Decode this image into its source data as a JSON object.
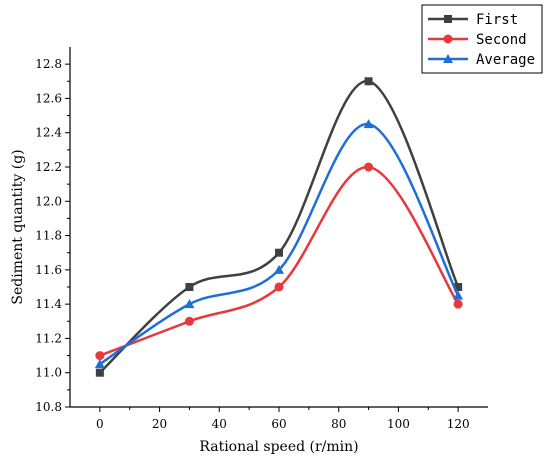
{
  "chart_data": {
    "type": "line",
    "xlabel": "Rational speed (r/min)",
    "ylabel": "Sediment quantity (g)",
    "xlim": [
      -10,
      130
    ],
    "ylim": [
      10.8,
      12.9
    ],
    "x_ticks": [
      0,
      20,
      40,
      60,
      80,
      100,
      120
    ],
    "y_ticks": [
      10.8,
      11.0,
      11.2,
      11.4,
      11.6,
      11.8,
      12.0,
      12.2,
      12.4,
      12.6,
      12.8
    ],
    "x_tick_labels": [
      "0",
      "20",
      "40",
      "60",
      "80",
      "100",
      "120"
    ],
    "y_tick_labels": [
      "10.8",
      "11.0",
      "11.2",
      "11.4",
      "11.6",
      "11.8",
      "12.0",
      "12.2",
      "12.4",
      "12.6",
      "12.8"
    ],
    "x": [
      0,
      30,
      60,
      90,
      120
    ],
    "series": [
      {
        "name": "First",
        "values": [
          11.0,
          11.5,
          11.7,
          12.7,
          11.5
        ],
        "color": "#404040",
        "marker": "square"
      },
      {
        "name": "Second",
        "values": [
          11.1,
          11.3,
          11.5,
          12.2,
          11.4
        ],
        "color": "#e8383d",
        "marker": "circle"
      },
      {
        "name": "Average",
        "values": [
          11.05,
          11.4,
          11.6,
          12.45,
          11.45
        ],
        "color": "#1f6fd6",
        "marker": "triangle"
      }
    ],
    "legend_position": "top-right",
    "grid": false
  }
}
